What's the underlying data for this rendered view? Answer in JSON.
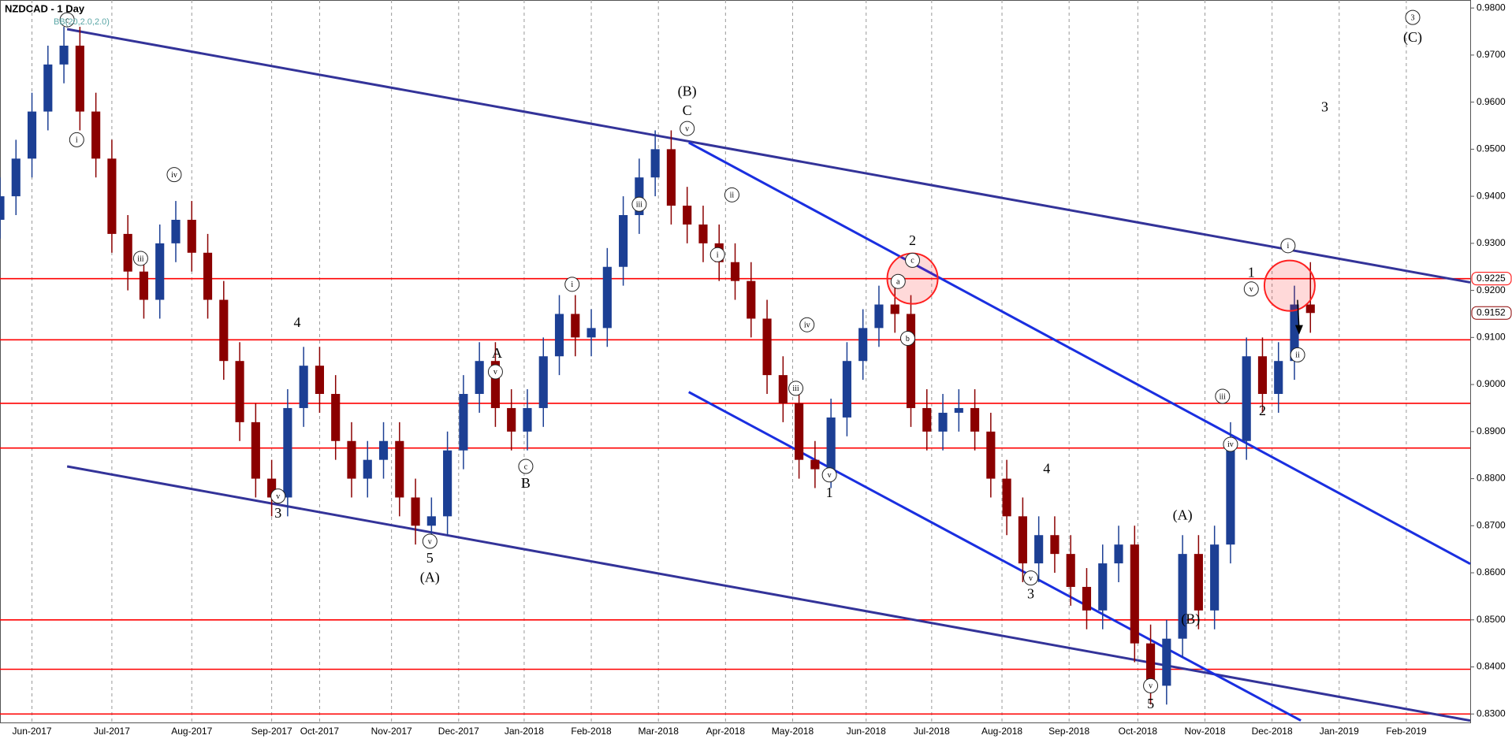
{
  "chart_data": {
    "type": "candlestick",
    "title": "NZDCAD - 1 Day",
    "indicator_label": "BB(20,2.0,2.0)",
    "xlim": [
      0,
      92
    ],
    "ylim": [
      0.8282,
      0.9817
    ],
    "xticks": [
      {
        "value": 2,
        "label": "Jun-2017"
      },
      {
        "value": 7,
        "label": "Jul-2017"
      },
      {
        "value": 12,
        "label": "Aug-2017"
      },
      {
        "value": 17,
        "label": "Sep-2017"
      },
      {
        "value": 20,
        "label": "Oct-2017"
      },
      {
        "value": 24.5,
        "label": "Nov-2017"
      },
      {
        "value": 28.7,
        "label": "Dec-2017"
      },
      {
        "value": 32.8,
        "label": "Jan-2018"
      },
      {
        "value": 37,
        "label": "Feb-2018"
      },
      {
        "value": 41.2,
        "label": "Mar-2018"
      },
      {
        "value": 45.4,
        "label": "Apr-2018"
      },
      {
        "value": 49.6,
        "label": "May-2018"
      },
      {
        "value": 54.2,
        "label": "Jun-2018"
      },
      {
        "value": 58.3,
        "label": "Jul-2018"
      },
      {
        "value": 62.7,
        "label": "Aug-2018"
      },
      {
        "value": 66.9,
        "label": "Sep-2018"
      },
      {
        "value": 71.2,
        "label": "Oct-2018"
      },
      {
        "value": 75.4,
        "label": "Nov-2018"
      },
      {
        "value": 79.6,
        "label": "Dec-2018"
      },
      {
        "value": 83.8,
        "label": "Jan-2019"
      },
      {
        "value": 88,
        "label": "Feb-2019"
      }
    ],
    "yticks": [
      {
        "value": 0.83,
        "label": "0.8300"
      },
      {
        "value": 0.84,
        "label": "0.8400"
      },
      {
        "value": 0.85,
        "label": "0.8500"
      },
      {
        "value": 0.86,
        "label": "0.8600"
      },
      {
        "value": 0.87,
        "label": "0.8700"
      },
      {
        "value": 0.88,
        "label": "0.8800"
      },
      {
        "value": 0.89,
        "label": "0.8900"
      },
      {
        "value": 0.9,
        "label": "0.9000"
      },
      {
        "value": 0.91,
        "label": "0.9100"
      },
      {
        "value": 0.92,
        "label": "0.9200"
      },
      {
        "value": 0.93,
        "label": "0.9300"
      },
      {
        "value": 0.94,
        "label": "0.9400"
      },
      {
        "value": 0.95,
        "label": "0.9500"
      },
      {
        "value": 0.96,
        "label": "0.9600"
      },
      {
        "value": 0.97,
        "label": "0.9700"
      },
      {
        "value": 0.98,
        "label": "0.9800"
      }
    ],
    "grid": true,
    "up_color": "#1c3f94",
    "down_color": "#8b0000",
    "x": [
      0,
      1,
      2,
      3,
      4,
      5,
      6,
      7,
      8,
      9,
      10,
      11,
      12,
      13,
      14,
      15,
      16,
      17,
      18,
      19,
      20,
      21,
      22,
      23,
      24,
      25,
      26,
      27,
      28,
      29,
      30,
      31,
      32,
      33,
      34,
      35,
      36,
      37,
      38,
      39,
      40,
      41,
      42,
      43,
      44,
      45,
      46,
      47,
      48,
      49,
      50,
      51,
      52,
      53,
      54,
      55,
      56,
      57,
      58,
      59,
      60,
      61,
      62,
      63,
      64,
      65,
      66,
      67,
      68,
      69,
      70,
      71,
      72,
      73,
      74,
      75,
      76,
      77,
      78,
      79,
      80,
      81,
      82
    ],
    "open": [
      0.935,
      0.94,
      0.948,
      0.958,
      0.968,
      0.972,
      0.958,
      0.948,
      0.932,
      0.924,
      0.918,
      0.93,
      0.935,
      0.928,
      0.918,
      0.905,
      0.892,
      0.88,
      0.876,
      0.895,
      0.904,
      0.898,
      0.888,
      0.88,
      0.884,
      0.888,
      0.876,
      0.87,
      0.872,
      0.886,
      0.898,
      0.905,
      0.895,
      0.89,
      0.895,
      0.906,
      0.915,
      0.91,
      0.912,
      0.925,
      0.936,
      0.944,
      0.95,
      0.938,
      0.934,
      0.93,
      0.926,
      0.922,
      0.914,
      0.902,
      0.896,
      0.884,
      0.882,
      0.893,
      0.905,
      0.912,
      0.917,
      0.915,
      0.895,
      0.89,
      0.894,
      0.895,
      0.89,
      0.88,
      0.872,
      0.862,
      0.868,
      0.864,
      0.857,
      0.852,
      0.862,
      0.866,
      0.845,
      0.836,
      0.846,
      0.864,
      0.852,
      0.866,
      0.888,
      0.906,
      0.898,
      0.905,
      0.917
    ],
    "high": [
      0.944,
      0.952,
      0.962,
      0.972,
      0.976,
      0.976,
      0.962,
      0.952,
      0.936,
      0.928,
      0.934,
      0.939,
      0.939,
      0.932,
      0.922,
      0.909,
      0.896,
      0.884,
      0.899,
      0.908,
      0.908,
      0.902,
      0.892,
      0.888,
      0.892,
      0.892,
      0.88,
      0.876,
      0.89,
      0.902,
      0.909,
      0.909,
      0.899,
      0.899,
      0.91,
      0.919,
      0.919,
      0.916,
      0.929,
      0.94,
      0.948,
      0.954,
      0.954,
      0.942,
      0.938,
      0.934,
      0.93,
      0.926,
      0.918,
      0.906,
      0.9,
      0.888,
      0.897,
      0.909,
      0.916,
      0.921,
      0.921,
      0.919,
      0.899,
      0.898,
      0.899,
      0.899,
      0.894,
      0.884,
      0.876,
      0.872,
      0.872,
      0.868,
      0.861,
      0.866,
      0.87,
      0.87,
      0.849,
      0.85,
      0.868,
      0.868,
      0.87,
      0.892,
      0.91,
      0.91,
      0.909,
      0.921,
      0.926
    ],
    "low": [
      0.931,
      0.936,
      0.944,
      0.954,
      0.964,
      0.954,
      0.944,
      0.928,
      0.92,
      0.914,
      0.914,
      0.926,
      0.924,
      0.914,
      0.901,
      0.888,
      0.876,
      0.872,
      0.872,
      0.891,
      0.894,
      0.884,
      0.876,
      0.876,
      0.88,
      0.872,
      0.866,
      0.866,
      0.868,
      0.882,
      0.894,
      0.891,
      0.886,
      0.886,
      0.891,
      0.902,
      0.906,
      0.906,
      0.908,
      0.921,
      0.932,
      0.94,
      0.934,
      0.93,
      0.926,
      0.922,
      0.918,
      0.91,
      0.898,
      0.892,
      0.88,
      0.878,
      0.878,
      0.889,
      0.901,
      0.908,
      0.911,
      0.891,
      0.886,
      0.886,
      0.89,
      0.886,
      0.876,
      0.868,
      0.858,
      0.858,
      0.86,
      0.853,
      0.848,
      0.848,
      0.858,
      0.841,
      0.832,
      0.832,
      0.842,
      0.848,
      0.848,
      0.862,
      0.884,
      0.894,
      0.894,
      0.901,
      0.911
    ],
    "close": [
      0.94,
      0.948,
      0.958,
      0.968,
      0.972,
      0.958,
      0.948,
      0.932,
      0.924,
      0.918,
      0.93,
      0.935,
      0.928,
      0.918,
      0.905,
      0.892,
      0.88,
      0.876,
      0.895,
      0.904,
      0.898,
      0.888,
      0.88,
      0.884,
      0.888,
      0.876,
      0.87,
      0.872,
      0.886,
      0.898,
      0.905,
      0.895,
      0.89,
      0.895,
      0.906,
      0.915,
      0.91,
      0.912,
      0.925,
      0.936,
      0.944,
      0.95,
      0.938,
      0.934,
      0.93,
      0.926,
      0.922,
      0.914,
      0.902,
      0.896,
      0.884,
      0.882,
      0.893,
      0.905,
      0.912,
      0.917,
      0.915,
      0.895,
      0.89,
      0.894,
      0.895,
      0.89,
      0.88,
      0.872,
      0.862,
      0.868,
      0.864,
      0.857,
      0.852,
      0.862,
      0.866,
      0.845,
      0.836,
      0.846,
      0.864,
      0.852,
      0.866,
      0.888,
      0.906,
      0.898,
      0.905,
      0.917,
      0.9152
    ],
    "levels": [
      0.9225,
      0.9095,
      0.896,
      0.8865,
      0.85,
      0.8395,
      0.83
    ],
    "level_color": "#ff0000",
    "price_labels": [
      {
        "value": 0.9225,
        "label": "0.9225"
      },
      {
        "value": 0.9152,
        "label": "0.9152"
      }
    ],
    "trendlines": [
      {
        "color": "#333399",
        "points": [
          [
            4.2,
            0.9755
          ],
          [
            92,
            0.9217
          ]
        ]
      },
      {
        "color": "#333399",
        "points": [
          [
            4.2,
            0.8826
          ],
          [
            92,
            0.8286
          ]
        ]
      },
      {
        "color": "#1a2fe0",
        "points": [
          [
            43.1,
            0.9514
          ],
          [
            92,
            0.8619
          ]
        ]
      },
      {
        "color": "#1a2fe0",
        "points": [
          [
            43.1,
            0.8984
          ],
          [
            81.4,
            0.8286
          ]
        ]
      }
    ],
    "highlights": [
      [
        57.1,
        0.9225
      ],
      [
        80.7,
        0.921
      ]
    ],
    "annotations": [
      {
        "text": "(B)",
        "x": 43,
        "y": 0.9622
      },
      {
        "text": "C",
        "x": 43,
        "y": 0.9581
      },
      {
        "text": "v",
        "x": 43,
        "y": 0.9544,
        "circled": true
      },
      {
        "text": "2",
        "x": 57.1,
        "y": 0.9305
      },
      {
        "text": "c",
        "x": 57.1,
        "y": 0.9264,
        "circled": true
      },
      {
        "text": "a",
        "x": 56.2,
        "y": 0.9219,
        "circled": true
      },
      {
        "text": "b",
        "x": 56.8,
        "y": 0.9098,
        "circled": true
      },
      {
        "text": "1",
        "x": 51.9,
        "y": 0.8769
      },
      {
        "text": "v",
        "x": 51.9,
        "y": 0.8808,
        "circled": true
      },
      {
        "text": "3",
        "x": 64.5,
        "y": 0.8554
      },
      {
        "text": "v",
        "x": 64.5,
        "y": 0.8589,
        "circled": true
      },
      {
        "text": "5",
        "x": 72,
        "y": 0.8321
      },
      {
        "text": "v",
        "x": 72,
        "y": 0.836,
        "circled": true
      },
      {
        "text": "(A)",
        "x": 74,
        "y": 0.8722
      },
      {
        "text": "(B)",
        "x": 74.5,
        "y": 0.8501
      },
      {
        "text": "1",
        "x": 78.3,
        "y": 0.9237
      },
      {
        "text": "v",
        "x": 78.3,
        "y": 0.9203,
        "circled": true
      },
      {
        "text": "2",
        "x": 79,
        "y": 0.8943
      },
      {
        "text": "iii",
        "x": 76.5,
        "y": 0.8975,
        "circled": true
      },
      {
        "text": "iv",
        "x": 77,
        "y": 0.8873,
        "circled": true
      },
      {
        "text": "i",
        "x": 80.6,
        "y": 0.9295,
        "circled": true
      },
      {
        "text": "ii",
        "x": 81.2,
        "y": 0.9063,
        "circled": true
      },
      {
        "text": "3",
        "x": 82.9,
        "y": 0.9589
      },
      {
        "text": "3",
        "x": 88.4,
        "y": 0.978,
        "circled": true
      },
      {
        "text": "(C)",
        "x": 88.4,
        "y": 0.9737
      },
      {
        "text": "3",
        "x": 17.4,
        "y": 0.8726
      },
      {
        "text": "v",
        "x": 17.4,
        "y": 0.8763,
        "circled": true
      },
      {
        "text": "4",
        "x": 18.6,
        "y": 0.9131
      },
      {
        "text": "5",
        "x": 26.9,
        "y": 0.863
      },
      {
        "text": "(A)",
        "x": 26.9,
        "y": 0.8589
      },
      {
        "text": "v",
        "x": 26.9,
        "y": 0.8667,
        "circled": true
      },
      {
        "text": "A",
        "x": 31.1,
        "y": 0.9066
      },
      {
        "text": "v",
        "x": 31,
        "y": 0.9027,
        "circled": true
      },
      {
        "text": "B",
        "x": 32.9,
        "y": 0.8789
      },
      {
        "text": "c",
        "x": 32.9,
        "y": 0.8826,
        "circled": true
      },
      {
        "text": "c",
        "x": 4.2,
        "y": 0.9775,
        "circled": true
      },
      {
        "text": "i",
        "x": 4.8,
        "y": 0.952,
        "circled": true
      },
      {
        "text": "iii",
        "x": 8.8,
        "y": 0.9268,
        "circled": true
      },
      {
        "text": "iv",
        "x": 10.9,
        "y": 0.9446,
        "circled": true
      },
      {
        "text": "4",
        "x": 65.5,
        "y": 0.882
      },
      {
        "text": "i",
        "x": 35.8,
        "y": 0.9213,
        "circled": true
      },
      {
        "text": "iii",
        "x": 40,
        "y": 0.9383,
        "circled": true
      },
      {
        "text": "ii",
        "x": 45.8,
        "y": 0.9403,
        "circled": true
      },
      {
        "text": "i",
        "x": 44.9,
        "y": 0.9276,
        "circled": true
      },
      {
        "text": "iv",
        "x": 50.5,
        "y": 0.9127,
        "circled": true
      },
      {
        "text": "iii",
        "x": 49.8,
        "y": 0.8992,
        "circled": true
      }
    ]
  }
}
